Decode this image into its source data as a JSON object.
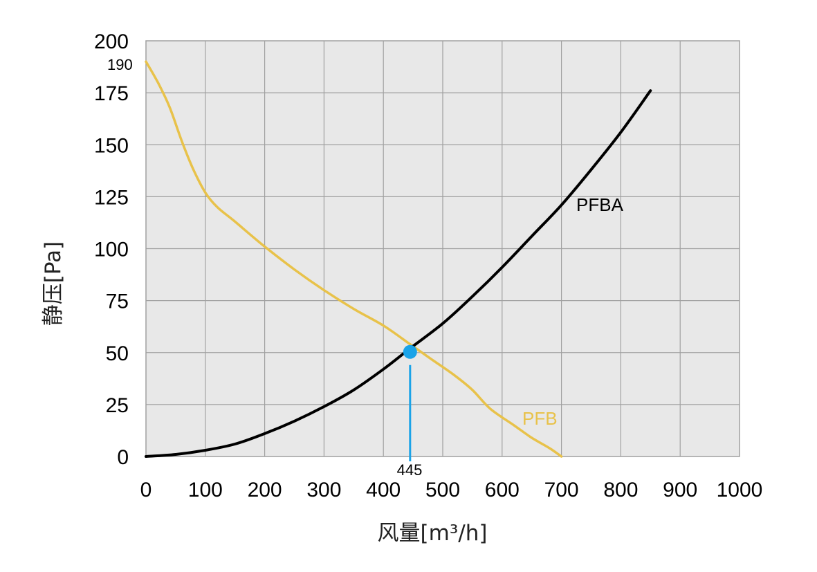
{
  "chart_data": {
    "type": "line",
    "xlabel": "风量[m³/h]",
    "ylabel": "静压[Pa]",
    "xlim": [
      0,
      1000
    ],
    "ylim": [
      0,
      200
    ],
    "x_ticks": [
      0,
      100,
      200,
      300,
      400,
      500,
      600,
      700,
      800,
      900,
      1000
    ],
    "y_ticks": [
      0,
      25,
      50,
      75,
      100,
      125,
      150,
      175,
      200
    ],
    "x_tick_labels": [
      "0",
      "100",
      "200",
      "300",
      "400",
      "500",
      "600",
      "700",
      "800",
      "900",
      "1000"
    ],
    "y_tick_labels": [
      "0",
      "25",
      "50",
      "75",
      "100",
      "125",
      "150",
      "175",
      "200"
    ],
    "grid": true,
    "background_color": "#e8e8e8",
    "grid_color": "#a0a0a0",
    "series": [
      {
        "name": "PFB",
        "color": "#e8c24a",
        "points": [
          [
            0,
            190
          ],
          [
            20,
            180
          ],
          [
            40,
            168
          ],
          [
            60,
            152
          ],
          [
            80,
            138
          ],
          [
            100,
            127
          ],
          [
            120,
            120
          ],
          [
            150,
            113
          ],
          [
            200,
            101
          ],
          [
            250,
            90
          ],
          [
            300,
            80
          ],
          [
            350,
            71
          ],
          [
            400,
            63
          ],
          [
            445,
            54
          ],
          [
            480,
            47
          ],
          [
            520,
            39
          ],
          [
            550,
            32
          ],
          [
            580,
            23
          ],
          [
            620,
            15
          ],
          [
            650,
            9
          ],
          [
            680,
            4
          ],
          [
            700,
            0
          ]
        ]
      },
      {
        "name": "PFBA",
        "color": "#000000",
        "points": [
          [
            0,
            0
          ],
          [
            50,
            1
          ],
          [
            100,
            3
          ],
          [
            150,
            6
          ],
          [
            200,
            11
          ],
          [
            250,
            17
          ],
          [
            300,
            24
          ],
          [
            350,
            32
          ],
          [
            400,
            42
          ],
          [
            445,
            52
          ],
          [
            500,
            64
          ],
          [
            550,
            77
          ],
          [
            600,
            91
          ],
          [
            650,
            106
          ],
          [
            700,
            121
          ],
          [
            750,
            138
          ],
          [
            800,
            156
          ],
          [
            850,
            176
          ]
        ]
      }
    ],
    "annotations": {
      "y_start_label": "190",
      "operating_point": {
        "x": 445,
        "y": 50,
        "label": "445",
        "color": "#1aa3e8"
      }
    }
  }
}
